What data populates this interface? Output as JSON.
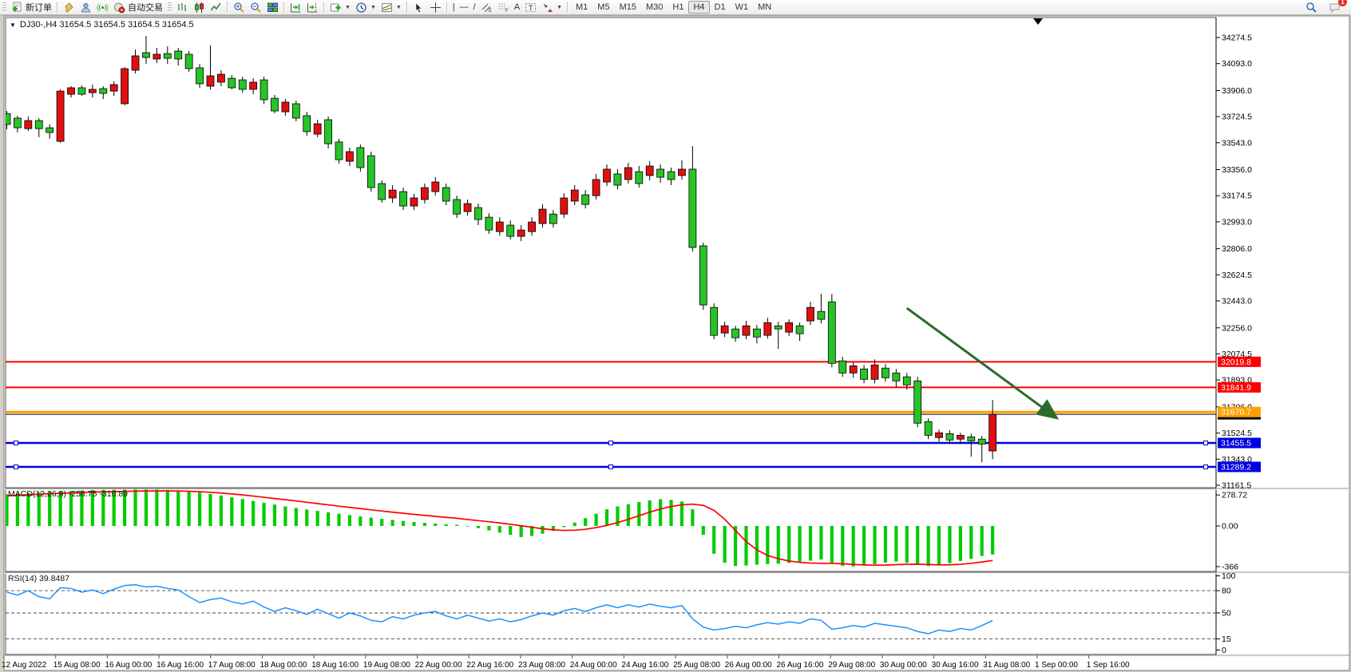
{
  "toolbar": {
    "new_order_label": "新订单",
    "autotrade_label": "自动交易",
    "timeframes": [
      "M1",
      "M5",
      "M15",
      "M30",
      "H1",
      "H4",
      "D1",
      "W1",
      "MN"
    ],
    "active_timeframe": "H4",
    "notification_count": "1"
  },
  "chart": {
    "symbol_label": "DJ30-,H4  31654.5 31654.5 31654.5 31654.5",
    "macd_label_full": "MACD(12,26,9) -256.75 -310.89",
    "rsi_label_full": "RSI(14) 39.8487"
  },
  "chart_data": {
    "type": "candlestick",
    "symbol": "DJ30-",
    "timeframe": "H4",
    "current_bar_ohlc": [
      31654.5,
      31654.5,
      31654.5,
      31654.5
    ],
    "colors": {
      "up_candle": "#E01010",
      "down_candle": "#27C427",
      "wick": "#000000",
      "hline_red": "#FF0000",
      "hline_orange": "#FFA000",
      "hline_blue": "#0000E0",
      "current_price": "#000000",
      "macd_hist": "#00CC00",
      "macd_signal": "#FF0000",
      "rsi_line": "#1E90FF",
      "arrow": "#2D6A2D"
    },
    "price_axis_ticks": [
      {
        "v": 34274.5,
        "label": "34274.5"
      },
      {
        "v": 34093.0,
        "label": "34093.0"
      },
      {
        "v": 33906.0,
        "label": "33906.0"
      },
      {
        "v": 33724.5,
        "label": "33724.5"
      },
      {
        "v": 33543.0,
        "label": "33543.0"
      },
      {
        "v": 33356.0,
        "label": "33356.0"
      },
      {
        "v": 33174.5,
        "label": "33174.5"
      },
      {
        "v": 32993.0,
        "label": "32993.0"
      },
      {
        "v": 32806.0,
        "label": "32806.0"
      },
      {
        "v": 32624.5,
        "label": "32624.5"
      },
      {
        "v": 32443.0,
        "label": "32443.0"
      },
      {
        "v": 32256.0,
        "label": "32256.0"
      },
      {
        "v": 32074.5,
        "label": "32074.5"
      },
      {
        "v": 31893.0,
        "label": "31893.0"
      },
      {
        "v": 31706.0,
        "label": "31706.0"
      },
      {
        "v": 31524.5,
        "label": "31524.5"
      },
      {
        "v": 31343.0,
        "label": "31343.0"
      },
      {
        "v": 31161.5,
        "label": "31161.5"
      }
    ],
    "horizontal_lines": [
      {
        "price": 32019.8,
        "label": "32019.8",
        "color": "#FF0000",
        "width": 2,
        "handles": false
      },
      {
        "price": 31841.9,
        "label": "31841.9",
        "color": "#FF0000",
        "width": 2,
        "handles": false
      },
      {
        "price": 31670.7,
        "label": "31670.7",
        "color": "#FFA000",
        "width": 3,
        "handles": false
      },
      {
        "price": 31455.5,
        "label": "31455.5",
        "color": "#0000E0",
        "width": 2.5,
        "handles": true
      },
      {
        "price": 31289.2,
        "label": "31289.2",
        "color": "#0000E0",
        "width": 2.5,
        "handles": true
      }
    ],
    "current_price": {
      "v": 31654.5,
      "label": "31654.5"
    },
    "candles": [
      [
        33746,
        33764,
        33636,
        33670
      ],
      [
        33714,
        33731,
        33614,
        33647
      ],
      [
        33641,
        33725,
        33625,
        33697
      ],
      [
        33697,
        33714,
        33581,
        33641
      ],
      [
        33647,
        33670,
        33570,
        33614
      ],
      [
        33553,
        33913,
        33542,
        33902
      ],
      [
        33880,
        33936,
        33858,
        33925
      ],
      [
        33925,
        33941,
        33869,
        33880
      ],
      [
        33891,
        33947,
        33858,
        33914
      ],
      [
        33919,
        33936,
        33847,
        33886
      ],
      [
        33902,
        33969,
        33869,
        33947
      ],
      [
        33814,
        34069,
        33803,
        34058
      ],
      [
        34047,
        34191,
        34025,
        34147
      ],
      [
        34169,
        34286,
        34091,
        34136
      ],
      [
        34125,
        34202,
        34097,
        34158
      ],
      [
        34163,
        34213,
        34091,
        34130
      ],
      [
        34180,
        34202,
        34080,
        34125
      ],
      [
        34158,
        34180,
        34036,
        34058
      ],
      [
        34064,
        34091,
        33925,
        33953
      ],
      [
        33936,
        34219,
        33914,
        34008
      ],
      [
        33964,
        34047,
        33936,
        34019
      ],
      [
        33991,
        34014,
        33914,
        33925
      ],
      [
        33980,
        34002,
        33891,
        33914
      ],
      [
        33914,
        33991,
        33880,
        33964
      ],
      [
        33980,
        34002,
        33814,
        33842
      ],
      [
        33852,
        33875,
        33747,
        33764
      ],
      [
        33758,
        33847,
        33731,
        33825
      ],
      [
        33814,
        33836,
        33692,
        33714
      ],
      [
        33731,
        33758,
        33592,
        33620
      ],
      [
        33603,
        33703,
        33581,
        33675
      ],
      [
        33703,
        33725,
        33503,
        33536
      ],
      [
        33548,
        33570,
        33398,
        33425
      ],
      [
        33414,
        33509,
        33381,
        33481
      ],
      [
        33509,
        33531,
        33342,
        33370
      ],
      [
        33453,
        33481,
        33203,
        33231
      ],
      [
        33259,
        33281,
        33126,
        33148
      ],
      [
        33159,
        33248,
        33125,
        33214
      ],
      [
        33203,
        33231,
        33075,
        33103
      ],
      [
        33103,
        33187,
        33075,
        33159
      ],
      [
        33148,
        33259,
        33120,
        33231
      ],
      [
        33203,
        33303,
        33175,
        33270
      ],
      [
        33231,
        33259,
        33109,
        33137
      ],
      [
        33148,
        33175,
        33020,
        33047
      ],
      [
        33064,
        33148,
        33036,
        33120
      ],
      [
        33092,
        33120,
        32970,
        33009
      ],
      [
        33025,
        33053,
        32909,
        32936
      ],
      [
        32925,
        33025,
        32898,
        32992
      ],
      [
        32970,
        33003,
        32870,
        32892
      ],
      [
        32892,
        32970,
        32859,
        32936
      ],
      [
        32925,
        33025,
        32898,
        32992
      ],
      [
        32981,
        33114,
        32953,
        33081
      ],
      [
        33047,
        33075,
        32953,
        32981
      ],
      [
        33047,
        33192,
        33020,
        33159
      ],
      [
        33137,
        33248,
        33109,
        33214
      ],
      [
        33181,
        33214,
        33086,
        33114
      ],
      [
        33175,
        33326,
        33148,
        33287
      ],
      [
        33270,
        33392,
        33242,
        33359
      ],
      [
        33326,
        33359,
        33220,
        33248
      ],
      [
        33287,
        33403,
        33259,
        33370
      ],
      [
        33342,
        33381,
        33231,
        33259
      ],
      [
        33315,
        33414,
        33281,
        33381
      ],
      [
        33359,
        33392,
        33264,
        33303
      ],
      [
        33342,
        33370,
        33248,
        33287
      ],
      [
        33315,
        33420,
        33287,
        33359
      ],
      [
        33359,
        33520,
        32787,
        32815
      ],
      [
        32826,
        32848,
        32381,
        32415
      ],
      [
        32398,
        32426,
        32176,
        32204
      ],
      [
        32220,
        32298,
        32192,
        32270
      ],
      [
        32248,
        32270,
        32159,
        32187
      ],
      [
        32204,
        32304,
        32176,
        32270
      ],
      [
        32248,
        32276,
        32148,
        32192
      ],
      [
        32204,
        32326,
        32181,
        32292
      ],
      [
        32270,
        32298,
        32109,
        32248
      ],
      [
        32226,
        32315,
        32198,
        32292
      ],
      [
        32270,
        32292,
        32165,
        32215
      ],
      [
        32304,
        32437,
        32276,
        32398
      ],
      [
        32370,
        32492,
        32287,
        32315
      ],
      [
        32437,
        32492,
        31981,
        32009
      ],
      [
        32026,
        32054,
        31915,
        31942
      ],
      [
        31942,
        32015,
        31909,
        31992
      ],
      [
        31970,
        31998,
        31870,
        31898
      ],
      [
        31898,
        32037,
        31870,
        31998
      ],
      [
        31976,
        32004,
        31881,
        31909
      ],
      [
        31942,
        31970,
        31843,
        31887
      ],
      [
        31915,
        31942,
        31826,
        31859
      ],
      [
        31887,
        31915,
        31565,
        31593
      ],
      [
        31604,
        31626,
        31482,
        31509
      ],
      [
        31493,
        31548,
        31465,
        31526
      ],
      [
        31520,
        31543,
        31448,
        31476
      ],
      [
        31482,
        31526,
        31448,
        31509
      ],
      [
        31498,
        31520,
        31360,
        31470
      ],
      [
        31482,
        31504,
        31321,
        31448
      ],
      [
        31400,
        31754,
        31343,
        31654.5
      ]
    ],
    "arrow_annotation": {
      "from_bar": 84,
      "from_price": 32393,
      "to_bar": 98,
      "to_price": 31628
    },
    "macd": {
      "name": "MACD",
      "params": "12,26,9",
      "main_value": -256.75,
      "signal_value": -310.89,
      "axis_ticks": [
        {
          "v": 278.72,
          "label": "278.72"
        },
        {
          "v": 0,
          "label": "0.00"
        },
        {
          "v": -366,
          "label": "-366"
        }
      ],
      "histogram": [
        285,
        292,
        298,
        303,
        308,
        312,
        316,
        319,
        322,
        324,
        326,
        327,
        328,
        328,
        327,
        324,
        319,
        311,
        300,
        288,
        274,
        258,
        242,
        225,
        208,
        192,
        176,
        162,
        148,
        135,
        122,
        110,
        98,
        86,
        75,
        64,
        54,
        45,
        36,
        28,
        21,
        15,
        10,
        -5,
        -20,
        -40,
        -60,
        -80,
        -100,
        -90,
        -70,
        -45,
        -10,
        30,
        70,
        110,
        150,
        175,
        195,
        215,
        230,
        240,
        235,
        220,
        150,
        -80,
        -250,
        -330,
        -360,
        -355,
        -348,
        -344,
        -340,
        -332,
        -322,
        -312,
        -302,
        -338,
        -358,
        -364,
        -355,
        -345,
        -330,
        -320,
        -332,
        -350,
        -360,
        -350,
        -335,
        -315,
        -295,
        -270,
        -256.75
      ],
      "signal": [
        270,
        276,
        281,
        286,
        290,
        294,
        298,
        301,
        304,
        307,
        309,
        311,
        313,
        314,
        315,
        315,
        314,
        312,
        308,
        303,
        296,
        288,
        279,
        269,
        258,
        247,
        236,
        225,
        213,
        201,
        190,
        178,
        167,
        156,
        145,
        134,
        124,
        114,
        104,
        95,
        86,
        77,
        69,
        58,
        48,
        38,
        27,
        15,
        2,
        -12,
        -25,
        -35,
        -40,
        -38,
        -30,
        -15,
        5,
        30,
        60,
        92,
        124,
        152,
        175,
        190,
        196,
        185,
        140,
        60,
        -40,
        -140,
        -215,
        -265,
        -295,
        -315,
        -328,
        -334,
        -336,
        -337,
        -340,
        -346,
        -351,
        -353,
        -352,
        -348,
        -345,
        -344,
        -347,
        -350,
        -350,
        -345,
        -336,
        -324,
        -310.89
      ]
    },
    "rsi": {
      "name": "RSI",
      "params": "14",
      "value": 39.8487,
      "levels": [
        80,
        50,
        15
      ],
      "axis_ticks": [
        {
          "v": 100,
          "label": "100"
        },
        {
          "v": 80,
          "label": "80"
        },
        {
          "v": 50,
          "label": "50"
        },
        {
          "v": 15,
          "label": "15"
        },
        {
          "v": 0,
          "label": "0"
        }
      ],
      "values": [
        78,
        74,
        80,
        72,
        69,
        84,
        83,
        78,
        81,
        76,
        82,
        87,
        88,
        85,
        86,
        83,
        81,
        72,
        64,
        68,
        70,
        65,
        62,
        66,
        58,
        52,
        57,
        53,
        48,
        55,
        49,
        43,
        50,
        46,
        40,
        38,
        45,
        42,
        47,
        50,
        52,
        46,
        42,
        47,
        43,
        39,
        42,
        38,
        41,
        46,
        50,
        47,
        53,
        56,
        52,
        57,
        61,
        57,
        61,
        58,
        62,
        59,
        57,
        60,
        42,
        31,
        27,
        29,
        32,
        30,
        34,
        37,
        35,
        38,
        36,
        42,
        40,
        28,
        30,
        33,
        31,
        36,
        34,
        32,
        30,
        25,
        22,
        27,
        25,
        29,
        27,
        33,
        39.8487
      ]
    },
    "time_axis": [
      "12 Aug 2022",
      "15 Aug 08:00",
      "16 Aug 00:00",
      "16 Aug 16:00",
      "17 Aug 08:00",
      "18 Aug 00:00",
      "18 Aug 16:00",
      "19 Aug 08:00",
      "22 Aug 00:00",
      "22 Aug 16:00",
      "23 Aug 08:00",
      "24 Aug 00:00",
      "24 Aug 16:00",
      "25 Aug 08:00",
      "26 Aug 00:00",
      "26 Aug 16:00",
      "29 Aug 08:00",
      "30 Aug 00:00",
      "30 Aug 16:00",
      "31 Aug 08:00",
      "1 Sep 00:00",
      "1 Sep 16:00"
    ]
  }
}
